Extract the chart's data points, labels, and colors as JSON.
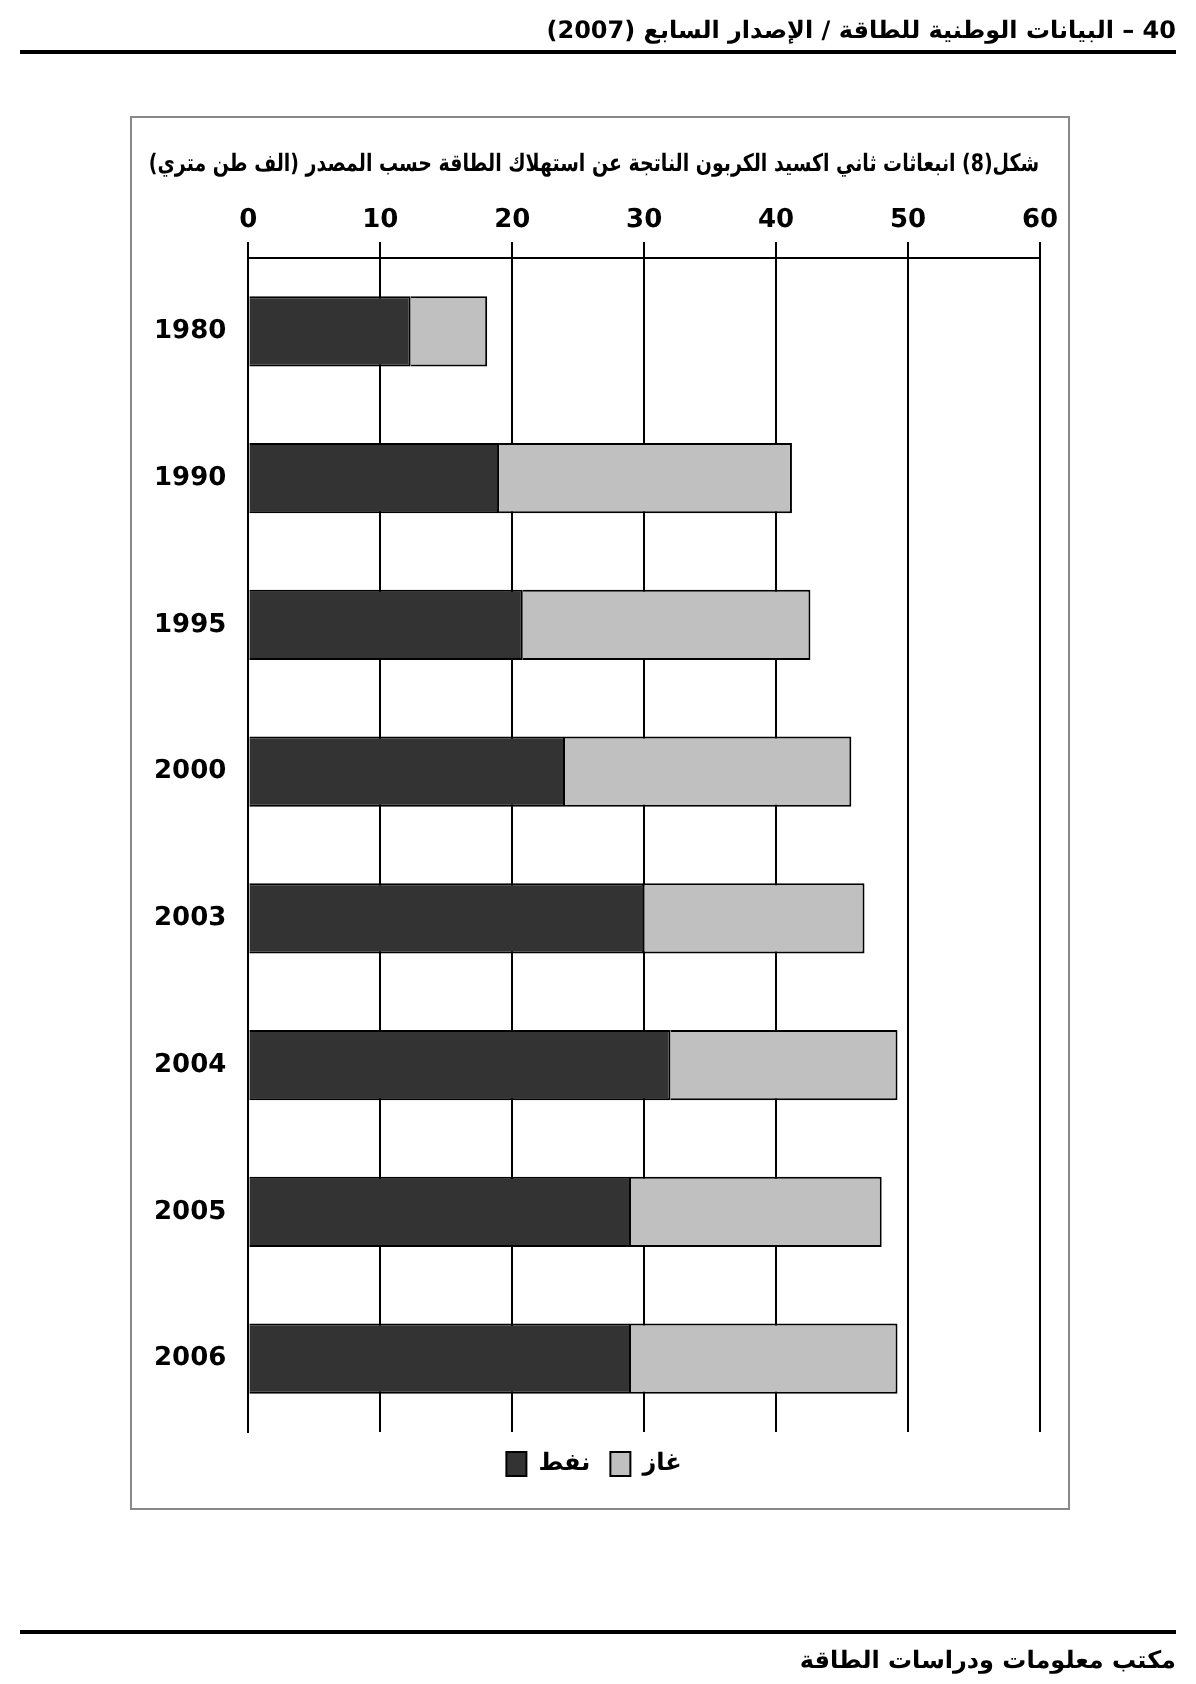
{
  "chart_data": {
    "type": "bar",
    "stacked": true,
    "orientation": "horizontal",
    "title": "شكل(8) انبعاثات ثاني اكسيد الكربون الناتجة عن استهلاك الطاقة حسب المصدر (الف طن متري)",
    "categories": [
      "1980",
      "1990",
      "1995",
      "2000",
      "2003",
      "2004",
      "2005",
      "2006"
    ],
    "series": [
      {
        "name": "نفط",
        "color": "#333333",
        "values": [
          12.3,
          19,
          20.8,
          24,
          30,
          32,
          29,
          29
        ]
      },
      {
        "name": "غاز",
        "color": "#c0c0c0",
        "values": [
          5.8,
          22.2,
          21.8,
          21.7,
          16.7,
          17.2,
          19,
          20.2
        ]
      }
    ],
    "xlim": [
      0,
      60
    ],
    "xticks": [
      0,
      10,
      20,
      30,
      40,
      50,
      60
    ],
    "grid": "x",
    "legend": "bottom",
    "annotations": [
      "40 – البيانات الوطنية للطاقة / الإصدار السابع (2007)",
      "مكتب معلومات ودراسات الطاقة"
    ]
  }
}
